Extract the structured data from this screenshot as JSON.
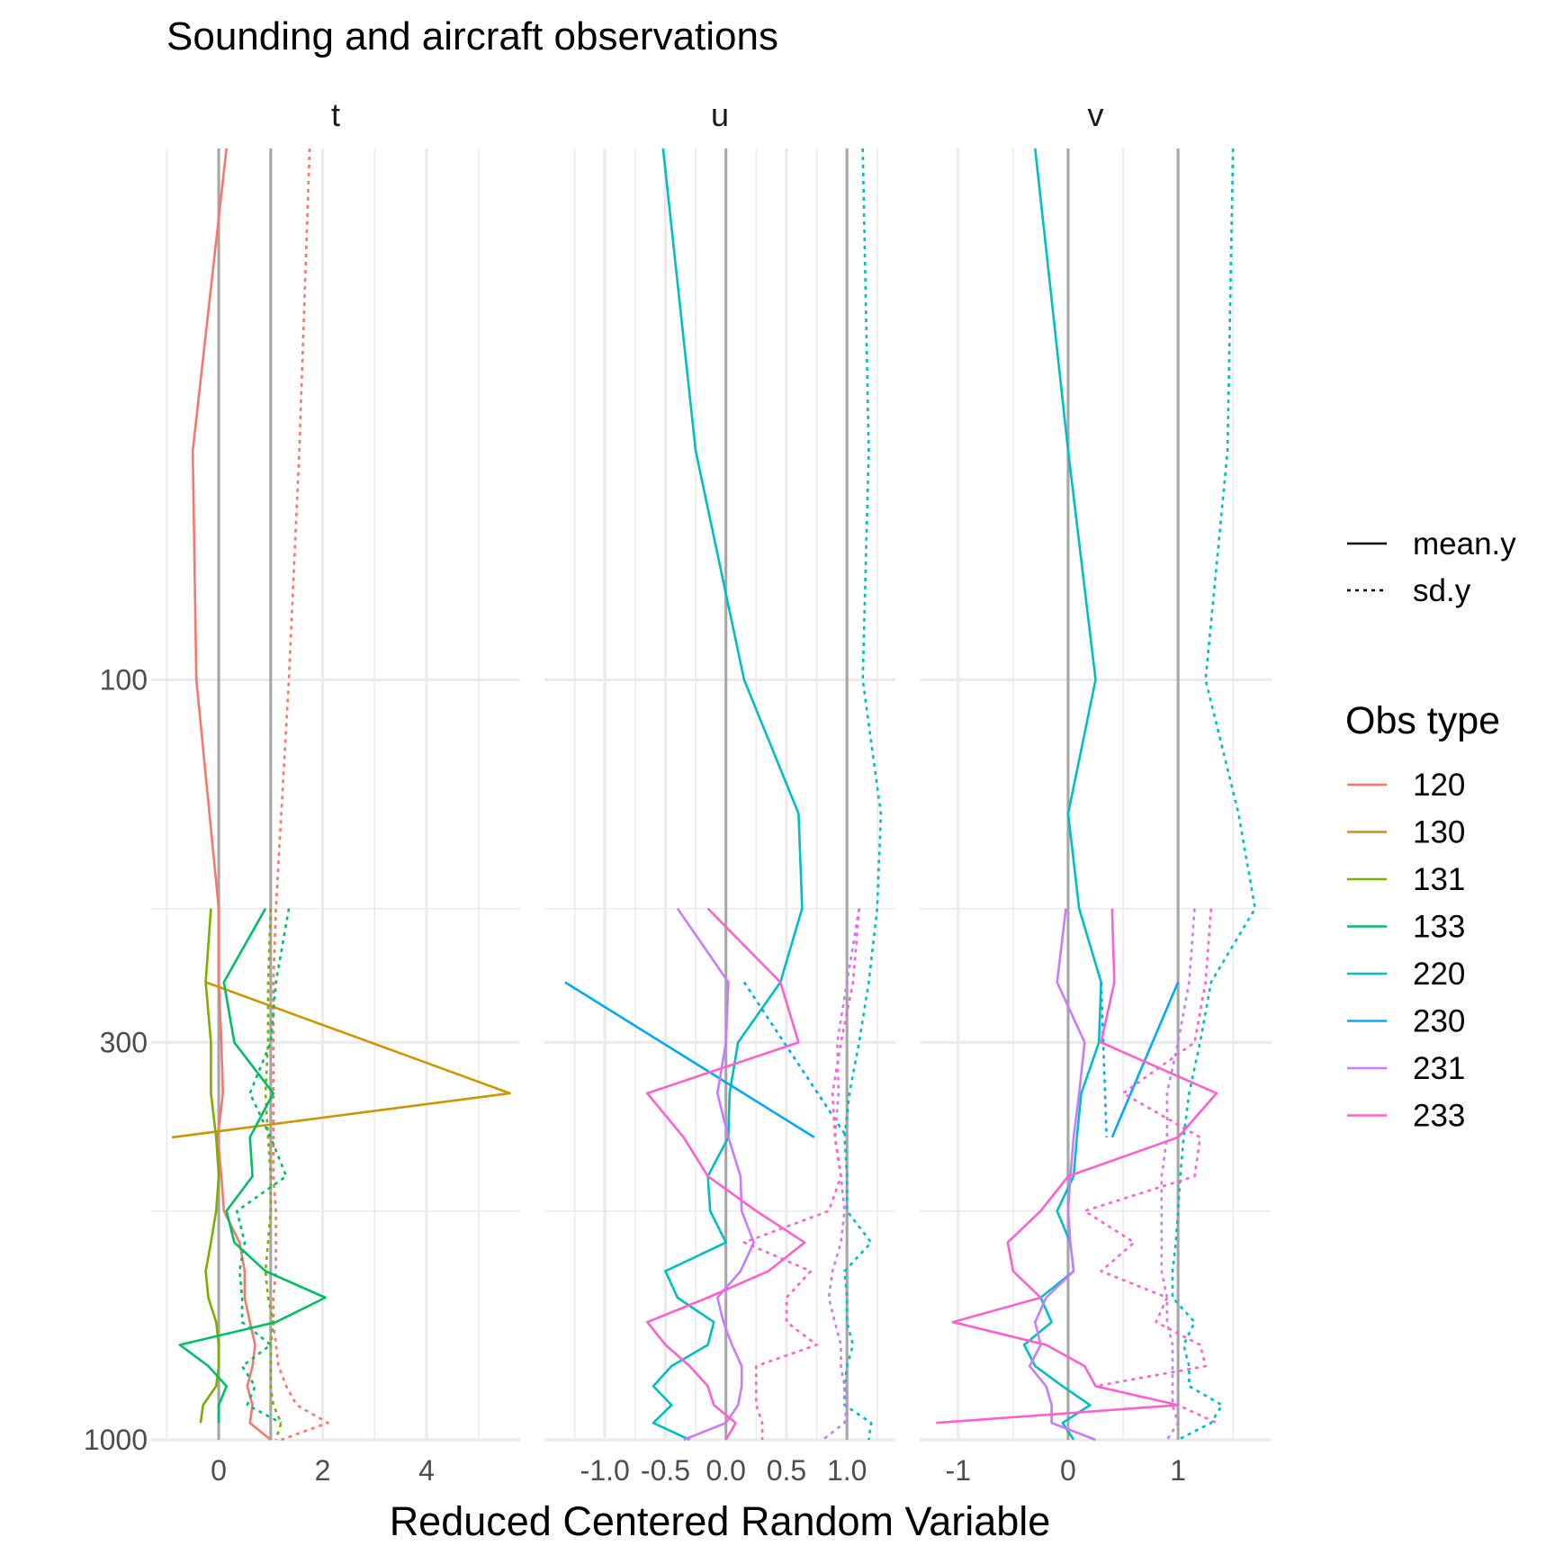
{
  "chart_data": {
    "type": "line",
    "title": "Sounding and aircraft observations",
    "xlabel": "Reduced Centered Random Variable",
    "ylabel": "",
    "y_scale": "log",
    "y_reversed": true,
    "ylim": [
      1000,
      20
    ],
    "y_ticks": [
      100,
      300,
      1000
    ],
    "y_tick_labels": [
      "100",
      "300",
      "1000"
    ],
    "y_minor": [
      200,
      500
    ],
    "levels": [
      20,
      50,
      100,
      200,
      250,
      300,
      350,
      400,
      450,
      500,
      550,
      600,
      650,
      700,
      750,
      800,
      850,
      900,
      950,
      1000
    ],
    "linetype_legend": {
      "title": "",
      "entries": [
        {
          "label": "mean.y",
          "dash": "solid"
        },
        {
          "label": "sd.y",
          "dash": "dotted"
        }
      ]
    },
    "color_legend": {
      "title": "Obs type",
      "entries": [
        {
          "label": "120",
          "color": "#F8766D"
        },
        {
          "label": "130",
          "color": "#CD9600"
        },
        {
          "label": "131",
          "color": "#7CAE00"
        },
        {
          "label": "133",
          "color": "#00BE67"
        },
        {
          "label": "220",
          "color": "#00BFC4"
        },
        {
          "label": "230",
          "color": "#00A9FF"
        },
        {
          "label": "231",
          "color": "#C77CFF"
        },
        {
          "label": "233",
          "color": "#FF61CC"
        }
      ]
    },
    "panels": [
      {
        "strip": "t",
        "xlim": [
          -1.3,
          5.8
        ],
        "x_ticks": [
          0,
          2,
          4
        ],
        "x_tick_labels": [
          "0",
          "2",
          "4"
        ],
        "x_minor": [
          -1,
          1,
          3,
          5
        ],
        "ref_lines": [
          0,
          1
        ],
        "series": [
          {
            "obs": "120",
            "stat": "mean.y",
            "p": [
              20,
              50,
              100,
              200,
              250,
              300,
              350,
              400,
              450,
              500,
              550,
              600,
              650,
              700,
              750,
              800,
              850,
              900,
              950,
              1000
            ],
            "x": [
              0.15,
              -0.5,
              -0.43,
              0,
              0,
              0.05,
              0.08,
              -0.02,
              0.05,
              0.1,
              0.4,
              0.5,
              0.5,
              0.6,
              0.7,
              0.65,
              0.55,
              0.65,
              0.6,
              1.0
            ]
          },
          {
            "obs": "120",
            "stat": "sd.y",
            "p": [
              20,
              50,
              100,
              200,
              250,
              300,
              350,
              400,
              450,
              500,
              550,
              600,
              650,
              700,
              750,
              800,
              850,
              900,
              950,
              1000
            ],
            "x": [
              1.75,
              1.55,
              1.35,
              1.1,
              1.05,
              1.05,
              1.05,
              1.05,
              1.05,
              1.1,
              1.1,
              1.1,
              1.05,
              1.05,
              1.1,
              1.15,
              1.3,
              1.5,
              2.1,
              1.2
            ]
          },
          {
            "obs": "130",
            "stat": "mean.y",
            "p": [
              250,
              350,
              400
            ],
            "x": [
              -0.25,
              5.6,
              -0.9
            ]
          },
          {
            "obs": "131",
            "stat": "mean.y",
            "p": [
              200,
              250,
              300,
              350,
              400,
              450,
              500,
              550,
              600,
              650,
              700,
              750,
              800,
              850,
              900,
              950
            ],
            "x": [
              -0.15,
              -0.25,
              -0.15,
              -0.15,
              -0.05,
              0,
              -0.05,
              -0.15,
              -0.25,
              -0.2,
              -0.05,
              0,
              0,
              -0.05,
              -0.3,
              -0.35
            ]
          },
          {
            "obs": "131",
            "stat": "sd.y",
            "p": [
              200,
              250,
              300,
              350,
              400,
              450,
              500,
              550,
              600,
              650,
              700,
              750,
              800,
              850,
              900,
              950,
              1000
            ],
            "x": [
              1.0,
              0.95,
              0.95,
              0.9,
              0.95,
              1.0,
              1.0,
              0.95,
              0.9,
              0.95,
              1.05,
              1.0,
              1.0,
              1.0,
              1.05,
              1.2,
              1.1
            ]
          },
          {
            "obs": "133",
            "stat": "mean.y",
            "p": [
              200,
              250,
              300,
              350,
              400,
              450,
              500,
              550,
              600,
              650,
              700,
              750,
              800,
              850,
              900,
              950
            ],
            "x": [
              0.9,
              0.1,
              0.3,
              1.05,
              0.6,
              0.65,
              0.15,
              0.3,
              0.9,
              2.05,
              1.1,
              -0.75,
              -0.2,
              0.15,
              0,
              0
            ]
          },
          {
            "obs": "133",
            "stat": "sd.y",
            "p": [
              200,
              250,
              300,
              350,
              400,
              450,
              500,
              550,
              600,
              650,
              700,
              750,
              800,
              850,
              900,
              950
            ],
            "x": [
              1.35,
              1.1,
              1.0,
              0.6,
              1.0,
              1.3,
              0.35,
              0.5,
              0.4,
              0.45,
              0.45,
              1.0,
              0.45,
              0.7,
              0.55,
              1.2
            ]
          }
        ]
      },
      {
        "strip": "u",
        "xlim": [
          -1.5,
          1.4
        ],
        "x_ticks": [
          -1.0,
          -0.5,
          0.0,
          0.5,
          1.0
        ],
        "x_tick_labels": [
          "-1.0",
          "-0.5",
          "0.0",
          "0.5",
          "1.0"
        ],
        "x_minor": [
          -1.25,
          -0.75,
          -0.25,
          0.25,
          0.75,
          1.25
        ],
        "ref_lines": [
          0,
          1
        ],
        "series": [
          {
            "obs": "220",
            "stat": "mean.y",
            "p": [
              20,
              50,
              100,
              150,
              200,
              250,
              300,
              350,
              400,
              450,
              500,
              550,
              600,
              650,
              700,
              750,
              800,
              850,
              900,
              950,
              1000
            ],
            "x": [
              -0.52,
              -0.25,
              0.15,
              0.6,
              0.63,
              0.45,
              0.1,
              0.03,
              0.02,
              -0.15,
              -0.13,
              0,
              -0.5,
              -0.4,
              -0.1,
              -0.15,
              -0.45,
              -0.6,
              -0.45,
              -0.6,
              -0.3
            ]
          },
          {
            "obs": "220",
            "stat": "sd.y",
            "p": [
              20,
              50,
              100,
              150,
              200,
              250,
              300,
              350,
              400,
              450,
              500,
              550,
              600,
              650,
              700,
              750,
              800,
              850,
              900,
              950,
              1000
            ],
            "x": [
              1.13,
              1.18,
              1.13,
              1.28,
              1.25,
              1.18,
              1.1,
              1.02,
              0.98,
              1.0,
              1.0,
              1.2,
              0.98,
              1.0,
              1.0,
              1.05,
              1.0,
              0.98,
              0.98,
              1.2,
              1.18
            ]
          },
          {
            "obs": "230",
            "stat": "mean.y",
            "p": [
              250,
              400
            ],
            "x": [
              -1.33,
              0.73
            ]
          },
          {
            "obs": "230",
            "stat": "sd.y",
            "p": [
              250,
              400
            ],
            "x": [
              0.15,
              1.0
            ]
          },
          {
            "obs": "231",
            "stat": "mean.y",
            "p": [
              200,
              250,
              300,
              350,
              400,
              450,
              500,
              550,
              600,
              650,
              700,
              750,
              800,
              850,
              900,
              950,
              1000
            ],
            "x": [
              -0.4,
              0.02,
              0,
              -0.07,
              0.02,
              0.12,
              0.13,
              0.23,
              0.12,
              -0.07,
              -0.02,
              0.05,
              0.13,
              0.13,
              0.1,
              0.0,
              -0.35
            ]
          },
          {
            "obs": "231",
            "stat": "sd.y",
            "p": [
              200,
              250,
              300,
              350,
              400,
              450,
              500,
              550,
              600,
              650,
              700,
              750,
              800,
              850,
              900,
              950,
              1000
            ],
            "x": [
              1.1,
              1.0,
              0.92,
              0.93,
              0.9,
              0.95,
              0.98,
              0.95,
              0.88,
              0.85,
              0.9,
              0.95,
              0.95,
              0.98,
              1.0,
              0.98,
              0.8
            ]
          },
          {
            "obs": "233",
            "stat": "mean.y",
            "p": [
              200,
              250,
              300,
              350,
              400,
              450,
              500,
              550,
              600,
              650,
              700,
              750,
              800,
              850,
              900,
              950,
              1000
            ],
            "x": [
              -0.15,
              0.45,
              0.6,
              -0.65,
              -0.35,
              -0.15,
              0.25,
              0.65,
              0.35,
              -0.15,
              -0.65,
              -0.5,
              -0.3,
              -0.15,
              -0.1,
              0.08,
              0.0
            ]
          },
          {
            "obs": "233",
            "stat": "sd.y",
            "p": [
              200,
              250,
              300,
              350,
              400,
              450,
              500,
              550,
              600,
              650,
              700,
              750,
              800,
              850,
              900,
              950,
              1000
            ],
            "x": [
              1.1,
              1.05,
              0.95,
              0.88,
              0.9,
              0.95,
              0.85,
              0.15,
              0.7,
              0.5,
              0.5,
              0.75,
              0.25,
              0.25,
              0.25,
              0.3,
              0.3
            ]
          }
        ]
      },
      {
        "strip": "v",
        "xlim": [
          -1.35,
          1.85
        ],
        "x_ticks": [
          -1,
          0,
          1
        ],
        "x_tick_labels": [
          "-1",
          "0",
          "1"
        ],
        "x_minor": [
          -0.5,
          0.5,
          1.5
        ],
        "ref_lines": [
          0,
          1
        ],
        "series": [
          {
            "obs": "220",
            "stat": "mean.y",
            "p": [
              20,
              50,
              100,
              150,
              200,
              250,
              300,
              350,
              400,
              450,
              500,
              550,
              600,
              650,
              700,
              750,
              800,
              850,
              900,
              950,
              1000
            ],
            "x": [
              -0.3,
              0,
              0.25,
              0,
              0.1,
              0.3,
              0.28,
              0.12,
              0.08,
              0.05,
              -0.1,
              0.02,
              0.05,
              -0.25,
              -0.15,
              -0.4,
              -0.3,
              -0.05,
              0.2,
              -0.05,
              0.05
            ]
          },
          {
            "obs": "220",
            "stat": "sd.y",
            "p": [
              20,
              50,
              100,
              150,
              200,
              250,
              300,
              350,
              400,
              450,
              500,
              550,
              600,
              650,
              700,
              750,
              800,
              850,
              900,
              950,
              1000
            ],
            "x": [
              1.5,
              1.45,
              1.25,
              1.55,
              1.7,
              1.3,
              1.2,
              1.1,
              1.05,
              1.02,
              1.0,
              0.98,
              0.95,
              0.95,
              1.15,
              1.05,
              1.1,
              1.1,
              1.4,
              1.3,
              1.0
            ]
          },
          {
            "obs": "230",
            "stat": "mean.y",
            "p": [
              250,
              400
            ],
            "x": [
              1.0,
              0.4
            ]
          },
          {
            "obs": "230",
            "stat": "sd.y",
            "p": [
              250,
              400
            ],
            "x": [
              0.3,
              0.35
            ]
          },
          {
            "obs": "231",
            "stat": "mean.y",
            "p": [
              200,
              250,
              300,
              350,
              400,
              450,
              500,
              550,
              600,
              650,
              700,
              750,
              800,
              850,
              900,
              950,
              1000
            ],
            "x": [
              -0.02,
              -0.1,
              0.15,
              0.1,
              0.05,
              0.02,
              0,
              0.02,
              0.05,
              -0.2,
              -0.3,
              -0.25,
              -0.35,
              -0.2,
              -0.15,
              -0.15,
              0.25
            ]
          },
          {
            "obs": "231",
            "stat": "sd.y",
            "p": [
              200,
              250,
              300,
              350,
              400,
              450,
              500,
              550,
              600,
              650,
              700,
              750,
              800,
              850,
              900,
              950,
              1000
            ],
            "x": [
              1.15,
              1.1,
              1.0,
              0.9,
              0.9,
              0.85,
              0.85,
              0.85,
              0.85,
              0.9,
              0.9,
              0.95,
              0.95,
              0.95,
              0.95,
              1.0,
              0.9
            ]
          },
          {
            "obs": "233",
            "stat": "mean.y",
            "p": [
              200,
              250,
              300,
              350,
              400,
              450,
              500,
              550,
              600,
              650,
              700,
              750,
              800,
              850,
              900,
              950,
              1000
            ],
            "x": [
              0.4,
              0.42,
              0.3,
              1.35,
              1.0,
              0.0,
              -0.25,
              -0.55,
              -0.5,
              -0.25,
              -1.05,
              -0.2,
              0.15,
              0.25,
              1.0,
              -1.2,
              null
            ]
          },
          {
            "obs": "233",
            "stat": "sd.y",
            "p": [
              200,
              250,
              300,
              350,
              400,
              450,
              500,
              550,
              600,
              650,
              700,
              750,
              800,
              850,
              900,
              950,
              1000
            ],
            "x": [
              1.3,
              1.25,
              1.15,
              0.5,
              1.2,
              1.15,
              0.15,
              0.6,
              0.3,
              0.9,
              0.8,
              1.2,
              1.25,
              0.25,
              1.0,
              1.35,
              null
            ]
          }
        ]
      }
    ]
  }
}
